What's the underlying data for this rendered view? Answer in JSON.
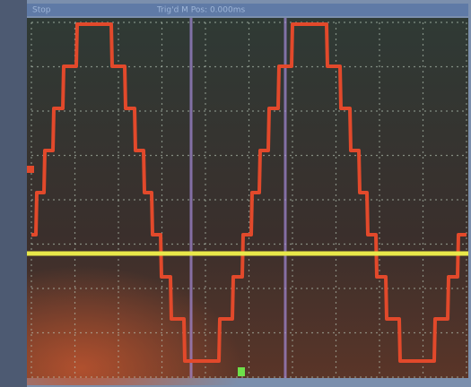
{
  "header": {
    "status": "Stop",
    "trigger": "Trig'd M Pos: 0.000ms"
  }
}
